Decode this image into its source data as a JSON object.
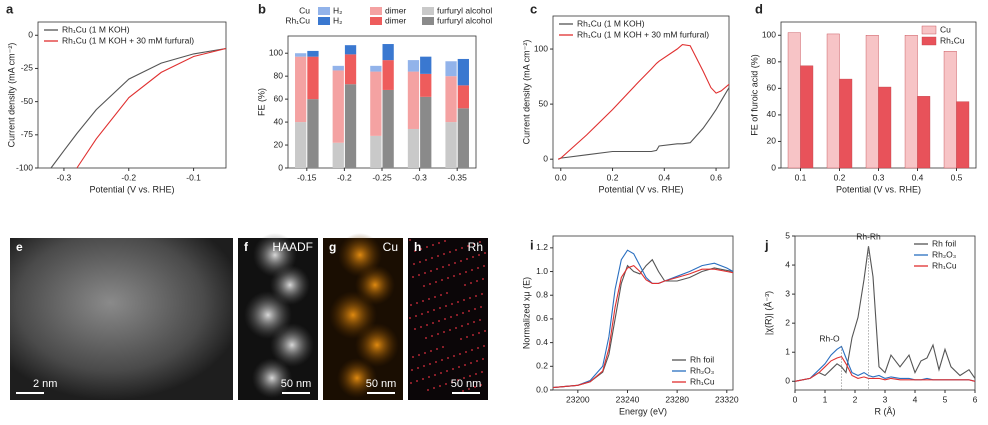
{
  "chart_data": [
    {
      "panel": "a",
      "type": "line",
      "xlabel": "Potential (V vs. RHE)",
      "ylabel": "Current density (mA cm⁻²)",
      "x": [
        -0.32,
        -0.3,
        -0.28,
        -0.25,
        -0.2,
        -0.15,
        -0.1,
        -0.05
      ],
      "series": [
        {
          "name": "Rh₁Cu (1 M KOH)",
          "color": "#555555",
          "values": [
            -100,
            -87,
            -74,
            -56,
            -33,
            -21,
            -14,
            -10
          ]
        },
        {
          "name": "Rh₁Cu (1 M KOH + 30 mM furfural)",
          "color": "#e03030",
          "values": [
            null,
            null,
            -100,
            -78,
            -47,
            -28,
            -16,
            -10
          ]
        }
      ],
      "xlim": [
        -0.34,
        -0.05
      ],
      "xticks": [
        -0.3,
        -0.2,
        -0.1
      ],
      "ylim": [
        -100,
        10
      ],
      "yticks": [
        0,
        -25,
        -50,
        -75,
        -100
      ],
      "legend": "upper left"
    },
    {
      "panel": "b",
      "type": "grouped_stacked_bar",
      "ylabel": "FE (%)",
      "categories": [
        "-0.15",
        "-0.2",
        "-0.25",
        "-0.3",
        "-0.35"
      ],
      "groups": [
        {
          "name": "Cu",
          "series": [
            {
              "name": "furfuryl alcohol",
              "color": "#c9c9c9",
              "values": [
                40,
                22,
                28,
                34,
                40
              ]
            },
            {
              "name": "dimer",
              "color": "#f4a2a2",
              "values": [
                57,
                63,
                56,
                50,
                40
              ]
            },
            {
              "name": "H₂",
              "color": "#92b3ea",
              "values": [
                3,
                4,
                5,
                10,
                13
              ]
            }
          ]
        },
        {
          "name": "Rh₁Cu",
          "series": [
            {
              "name": "furfuryl alcohol",
              "color": "#8a8a8a",
              "values": [
                60,
                73,
                68,
                62,
                52
              ]
            },
            {
              "name": "dimer",
              "color": "#ee5c5c",
              "values": [
                37,
                26,
                26,
                20,
                20
              ]
            },
            {
              "name": "H₂",
              "color": "#3a78d0",
              "values": [
                5,
                8,
                14,
                15,
                23
              ]
            }
          ]
        }
      ],
      "ylim": [
        0,
        115
      ],
      "yticks": [
        0,
        20,
        40,
        60,
        80,
        100
      ],
      "legend": "top"
    },
    {
      "panel": "c",
      "type": "line",
      "xlabel": "Potential (V vs. RHE)",
      "ylabel": "Current density (mA cm⁻²)",
      "x": [
        -0.01,
        0,
        0.1,
        0.2,
        0.3,
        0.35,
        0.37,
        0.38,
        0.45,
        0.47,
        0.5,
        0.55,
        0.58,
        0.6,
        0.62,
        0.65
      ],
      "series": [
        {
          "name": "Rh₁Cu (1 M KOH)",
          "color": "#555555",
          "values": [
            0,
            1,
            4,
            7,
            7,
            7,
            8,
            12,
            14,
            14,
            15,
            28,
            38,
            45,
            53,
            65
          ]
        },
        {
          "name": "Rh₁Cu (1 M KOH + 30 mM furfural)",
          "color": "#e03030",
          "values": [
            0,
            1,
            22,
            45,
            70,
            82,
            87,
            89,
            100,
            104,
            103,
            80,
            65,
            60,
            62,
            68
          ]
        }
      ],
      "xlim": [
        -0.03,
        0.65
      ],
      "xticks": [
        {
          "value": 0,
          "label": "0.0"
        },
        0.2,
        0.4,
        0.6
      ],
      "ylim": [
        -8,
        130
      ],
      "yticks": [
        0,
        50,
        100
      ],
      "legend": "upper left"
    },
    {
      "panel": "d",
      "type": "bar",
      "xlabel": "Potential (V vs. RHE)",
      "ylabel": "FE of furoic acid (%)",
      "categories": [
        "0.1",
        "0.2",
        "0.3",
        "0.4",
        "0.5"
      ],
      "series": [
        {
          "name": "Cu",
          "color": "#f7c4c6",
          "values": [
            102,
            101,
            100,
            100,
            88
          ]
        },
        {
          "name": "Rh₁Cu",
          "color": "#e8525a",
          "values": [
            77,
            67,
            61,
            54,
            50
          ]
        }
      ],
      "ylim": [
        0,
        110
      ],
      "yticks": [
        0,
        20,
        40,
        60,
        80,
        100
      ],
      "legend": "upper right"
    },
    {
      "panel": "i",
      "type": "line",
      "xlabel": "Energy (eV)",
      "ylabel": "Normalized xμ (E)",
      "x": [
        23180,
        23200,
        23210,
        23220,
        23225,
        23230,
        23235,
        23240,
        23245,
        23250,
        23255,
        23260,
        23265,
        23270,
        23280,
        23290,
        23300,
        23310,
        23320,
        23325
      ],
      "series": [
        {
          "name": "Rh foil",
          "color": "#555555",
          "values": [
            0.02,
            0.04,
            0.07,
            0.15,
            0.3,
            0.6,
            0.9,
            1.05,
            1.0,
            0.98,
            1.05,
            1.1,
            1.0,
            0.92,
            0.92,
            0.95,
            1.0,
            1.03,
            1.01,
            1.0
          ]
        },
        {
          "name": "Rh₂O₃",
          "color": "#2a6fc0",
          "values": [
            0.02,
            0.04,
            0.08,
            0.2,
            0.45,
            0.85,
            1.1,
            1.18,
            1.15,
            1.05,
            0.95,
            0.9,
            0.9,
            0.92,
            0.96,
            1.0,
            1.05,
            1.07,
            1.03,
            1.0
          ]
        },
        {
          "name": "Rh₁Cu",
          "color": "#e03030",
          "values": [
            0.02,
            0.04,
            0.07,
            0.16,
            0.35,
            0.7,
            0.95,
            1.03,
            1.05,
            1.0,
            0.93,
            0.9,
            0.9,
            0.92,
            0.95,
            0.98,
            1.02,
            1.02,
            1.0,
            0.99
          ]
        }
      ],
      "xlim": [
        23180,
        23325
      ],
      "xticks": [
        23200,
        23240,
        23280,
        23320
      ],
      "ylim": [
        0,
        1.3
      ],
      "yticks": [
        {
          "value": 0,
          "label": "0.0"
        },
        0.2,
        0.4,
        0.6,
        0.8,
        {
          "value": 1,
          "label": "1.0"
        },
        1.2
      ],
      "legend": "lower right"
    },
    {
      "panel": "j",
      "type": "line",
      "xlabel": "R (Å)",
      "ylabel": "|χ(R)| (Å⁻³)",
      "annotations": [
        "Rh-Rh",
        "Rh-O"
      ],
      "x": [
        0,
        0.5,
        0.8,
        1.0,
        1.2,
        1.4,
        1.55,
        1.7,
        1.9,
        2.1,
        2.3,
        2.45,
        2.6,
        2.8,
        3.0,
        3.2,
        3.5,
        3.8,
        4.0,
        4.2,
        4.4,
        4.6,
        4.8,
        5.0,
        5.2,
        5.5,
        5.8,
        6.0
      ],
      "series": [
        {
          "name": "Rh foil",
          "color": "#555555",
          "values": [
            0,
            0.1,
            0.3,
            0.2,
            0.4,
            0.6,
            0.5,
            0.3,
            1.5,
            2.2,
            3.5,
            4.65,
            3.6,
            0.5,
            0.3,
            0.9,
            0.5,
            0.9,
            0.3,
            0.7,
            0.8,
            1.25,
            0.4,
            1.1,
            0.5,
            0.2,
            0.4,
            0.1
          ]
        },
        {
          "name": "Rh₂O₃",
          "color": "#2a6fc0",
          "values": [
            0,
            0.1,
            0.4,
            0.6,
            0.9,
            1.1,
            1.2,
            0.8,
            0.3,
            0.2,
            0.3,
            0.2,
            0.15,
            0.2,
            0.1,
            0.15,
            0.1,
            0.1,
            0.05,
            0.05,
            0.1,
            0.05,
            0.05,
            0.05,
            0.05,
            0.05,
            0.05,
            0
          ]
        },
        {
          "name": "Rh₁Cu",
          "color": "#e03030",
          "values": [
            0,
            0.1,
            0.3,
            0.5,
            0.7,
            0.8,
            0.85,
            0.6,
            0.2,
            0.1,
            0.15,
            0.1,
            0.1,
            0.1,
            0.05,
            0.1,
            0.05,
            0.05,
            0.05,
            0.05,
            0.05,
            0.05,
            0.05,
            0.05,
            0.05,
            0.05,
            0.05,
            0
          ]
        }
      ],
      "xlim": [
        0,
        6
      ],
      "xticks": [
        0,
        1,
        2,
        3,
        4,
        5,
        6
      ],
      "ylim": [
        -0.3,
        5
      ],
      "yticks": [
        0,
        1,
        2,
        3,
        4,
        5
      ],
      "legend": "upper right"
    }
  ],
  "images": [
    {
      "panel": "e",
      "scale_bar": "2 nm"
    },
    {
      "panel": "f",
      "label": "HAADF",
      "scale_bar": "50 nm"
    },
    {
      "panel": "g",
      "label": "Cu",
      "scale_bar": "50 nm"
    },
    {
      "panel": "h",
      "label": "Rh",
      "scale_bar": "50 nm"
    }
  ]
}
